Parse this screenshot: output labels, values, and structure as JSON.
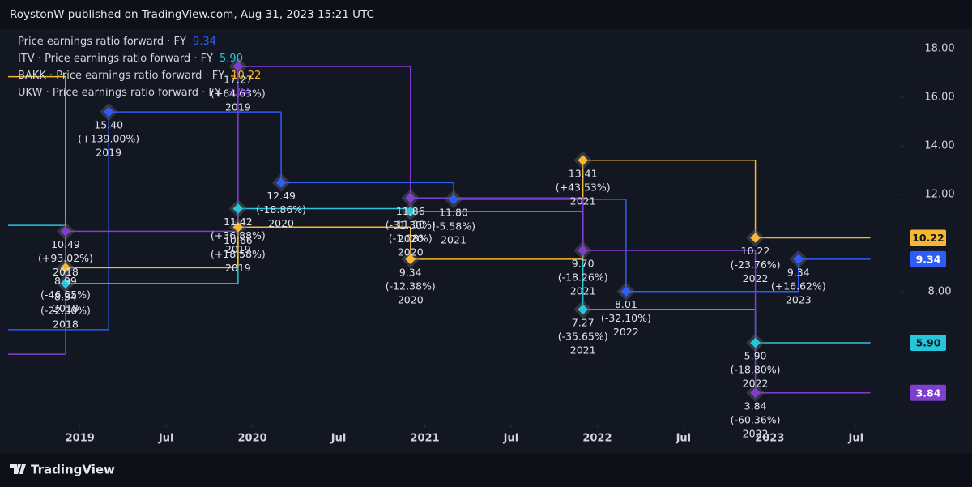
{
  "header": "RoystonW published on TradingView.com, Aug 31, 2023 15:21 UTC",
  "footer_brand": "TradingView",
  "chart_data": {
    "type": "step",
    "xlim": [
      "2018-08",
      "2023-10"
    ],
    "end": "2023-08",
    "ylim": [
      2.5,
      18.67
    ],
    "grid": false,
    "xticks": [
      {
        "value": "2019-01",
        "label": "2019"
      },
      {
        "value": "2019-07",
        "label": "Jul"
      },
      {
        "value": "2020-01",
        "label": "2020"
      },
      {
        "value": "2020-07",
        "label": "Jul"
      },
      {
        "value": "2021-01",
        "label": "2021"
      },
      {
        "value": "2021-07",
        "label": "Jul"
      },
      {
        "value": "2022-01",
        "label": "2022"
      },
      {
        "value": "2022-07",
        "label": "Jul"
      },
      {
        "value": "2023-01",
        "label": "2023"
      },
      {
        "value": "2023-07",
        "label": "Jul"
      }
    ],
    "yticks": [
      {
        "value": 18,
        "label": "18.00"
      },
      {
        "value": 16,
        "label": "16.00"
      },
      {
        "value": 14,
        "label": "14.00"
      },
      {
        "value": 12,
        "label": "12.00"
      },
      {
        "value": 8,
        "label": "8.00"
      }
    ],
    "series": [
      {
        "name": "Price earnings ratio forward · FY",
        "color": "#2f5cf6",
        "x": [
          "2018-03",
          "2019-03",
          "2020-03",
          "2021-03",
          "2022-03",
          "2023-03"
        ],
        "values": [
          6.44,
          15.4,
          12.49,
          11.8,
          8.01,
          9.34
        ],
        "value_labels": [
          null,
          "15.40",
          "12.49",
          "11.80",
          "8.01",
          "9.34"
        ],
        "changes": [
          null,
          "(+139.00%)",
          "(-18.86%)",
          "(-5.58%)",
          "(-32.10%)",
          "(+16.62%)"
        ],
        "fiscal_years": [
          null,
          "2019",
          "2020",
          "2021",
          "2022",
          "2023"
        ]
      },
      {
        "name": "ITV · Price earnings ratio forward · FY",
        "color": "#26c6da",
        "x": [
          "2017-12",
          "2018-12",
          "2019-12",
          "2020-12",
          "2021-12",
          "2022-12"
        ],
        "values": [
          10.73,
          8.34,
          11.42,
          11.3,
          7.27,
          5.9
        ],
        "value_labels": [
          null,
          "8.34",
          "11.42",
          "11.30",
          "7.27",
          "5.90"
        ],
        "changes": [
          null,
          "(-22.30%)",
          "(+36.88%)",
          "(-1.08%)",
          "(-35.65%)",
          "(-18.80%)"
        ],
        "fiscal_years": [
          null,
          "2018",
          "2019",
          "2020",
          "2021",
          "2022"
        ]
      },
      {
        "name": "BAKK · Price earnings ratio forward · FY",
        "color": "#f7b731",
        "x": [
          "2017-12",
          "2018-12",
          "2019-12",
          "2020-12",
          "2021-12",
          "2022-12"
        ],
        "values": [
          16.85,
          8.99,
          10.66,
          9.34,
          13.41,
          10.22
        ],
        "value_labels": [
          null,
          "8.99",
          "10.66",
          "9.34",
          "13.41",
          "10.22"
        ],
        "changes": [
          null,
          "(-46.65%)",
          "(+18.58%)",
          "(-12.38%)",
          "(+43.53%)",
          "(-23.76%)"
        ],
        "fiscal_years": [
          null,
          "2018",
          "2019",
          "2020",
          "2021",
          "2022"
        ]
      },
      {
        "name": "UKW · Price earnings ratio forward · FY",
        "color": "#7e3fd1",
        "x": [
          "2017-12",
          "2018-12",
          "2019-12",
          "2020-12",
          "2021-12",
          "2022-12"
        ],
        "values": [
          5.43,
          10.49,
          17.27,
          11.86,
          9.7,
          3.84
        ],
        "value_labels": [
          null,
          "10.49",
          "17.27",
          "11.86",
          "9.70",
          "3.84"
        ],
        "changes": [
          null,
          "(+93.02%)",
          "(+64.63%)",
          "(-31.30%)",
          "(-18.26%)",
          "(-60.36%)"
        ],
        "fiscal_years": [
          null,
          "2018",
          "2019",
          "2020",
          "2021",
          "2022"
        ]
      }
    ]
  }
}
